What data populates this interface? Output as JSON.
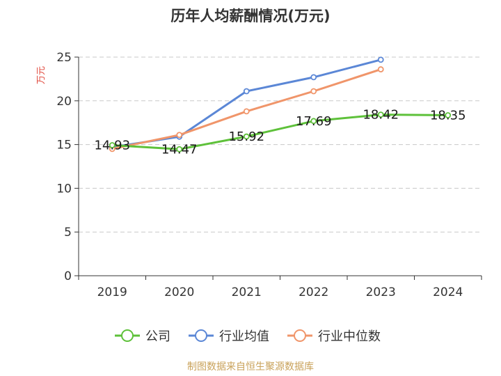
{
  "chart_data": {
    "type": "line",
    "title": "历年人均薪酬情况(万元)",
    "ylabel": "万元",
    "ylim": [
      0,
      25
    ],
    "yticks": [
      0,
      5,
      10,
      15,
      20,
      25
    ],
    "categories": [
      "2019",
      "2020",
      "2021",
      "2022",
      "2023",
      "2024"
    ],
    "grid": true,
    "legend_position": "bottom",
    "series": [
      {
        "name": "公司",
        "color": "#5ec13a",
        "values": [
          14.93,
          14.47,
          15.92,
          17.69,
          18.42,
          18.35
        ],
        "show_labels": true
      },
      {
        "name": "行业均值",
        "color": "#5b87d6",
        "values": [
          14.7,
          15.9,
          21.1,
          22.7,
          24.7,
          null
        ],
        "show_labels": false
      },
      {
        "name": "行业中位数",
        "color": "#f0956a",
        "values": [
          14.5,
          16.1,
          18.8,
          21.1,
          23.6,
          null
        ],
        "show_labels": false
      }
    ],
    "source": "制图数据来自恒生聚源数据库"
  }
}
